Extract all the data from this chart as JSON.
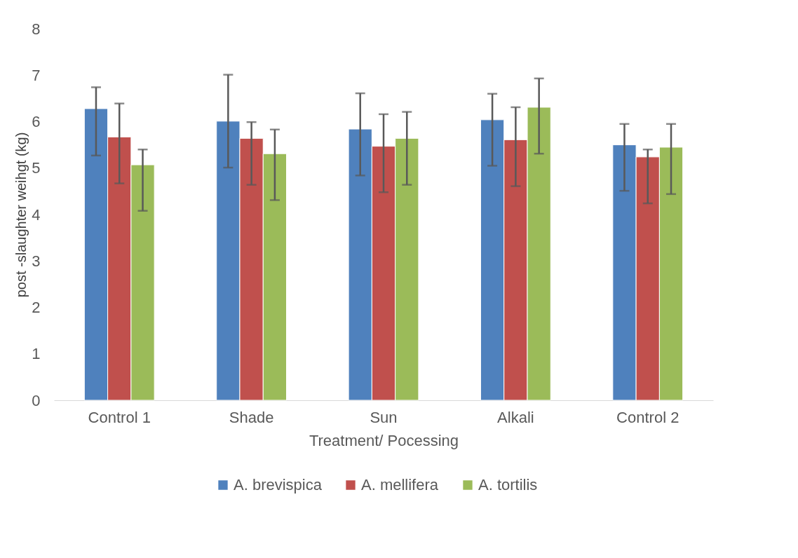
{
  "chart_data": {
    "type": "bar",
    "xlabel": "Treatment/ Pocessing",
    "ylabel": "post -slaughter weihgt (kg)",
    "categories": [
      "Control 1",
      "Shade",
      "Sun",
      "Alkali",
      "Control 2"
    ],
    "ylim": [
      0,
      8
    ],
    "yticks": [
      0,
      1,
      2,
      3,
      4,
      5,
      6,
      7,
      8
    ],
    "grid": false,
    "legend": "bottom",
    "series": [
      {
        "name": "A. brevispica",
        "color": "#4f81bd",
        "values": [
          6.28,
          6.01,
          5.84,
          6.04,
          5.5
        ],
        "errors": [
          [
            5.27,
            6.74
          ],
          [
            5.01,
            7.01
          ],
          [
            4.84,
            6.61
          ],
          [
            5.05,
            6.6
          ],
          [
            4.51,
            5.95
          ]
        ]
      },
      {
        "name": "A. mellifera",
        "color": "#c0504d",
        "values": [
          5.67,
          5.64,
          5.47,
          5.61,
          5.24
        ],
        "errors": [
          [
            4.67,
            6.39
          ],
          [
            4.64,
            5.99
          ],
          [
            4.48,
            6.16
          ],
          [
            4.61,
            6.31
          ],
          [
            4.24,
            5.4
          ]
        ]
      },
      {
        "name": "A. tortilis",
        "color": "#9bbb59",
        "values": [
          5.07,
          5.31,
          5.64,
          6.31,
          5.45
        ],
        "errors": [
          [
            4.08,
            5.4
          ],
          [
            4.31,
            5.83
          ],
          [
            4.64,
            6.21
          ],
          [
            5.31,
            6.93
          ],
          [
            4.44,
            5.95
          ]
        ]
      }
    ]
  }
}
